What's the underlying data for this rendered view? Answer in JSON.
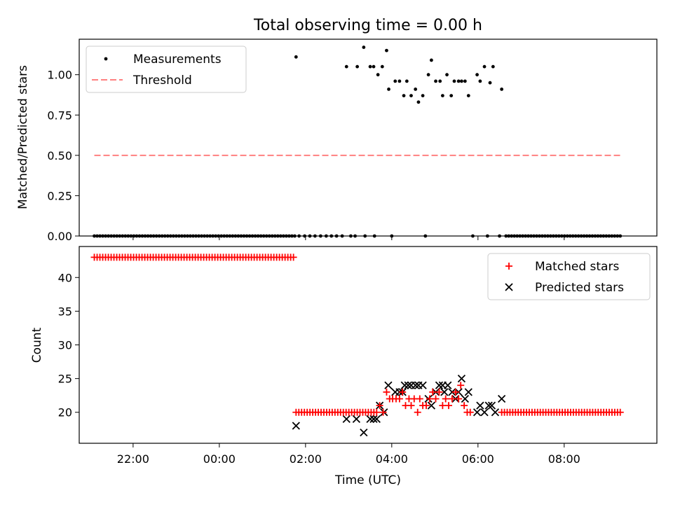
{
  "figure": {
    "title": "Total observing time = 0.00 h"
  },
  "colors": {
    "measurement": "#000000",
    "threshold": "#ff8080",
    "matched": "#ff0000",
    "predicted": "#000000"
  },
  "chart_data": [
    {
      "type": "scatter",
      "panel": "top",
      "x_unit": "hours from 00:00 UTC",
      "xlim": [
        -3.25,
        10.15
      ],
      "ylim": [
        0,
        1.22
      ],
      "xlabel": "",
      "ylabel": "Matched/Predicted stars",
      "x_ticks": [
        {
          "value": -2,
          "label": ""
        },
        {
          "value": 0,
          "label": ""
        },
        {
          "value": 2,
          "label": ""
        },
        {
          "value": 4,
          "label": ""
        },
        {
          "value": 6,
          "label": ""
        },
        {
          "value": 8,
          "label": ""
        }
      ],
      "y_ticks": [
        {
          "value": 0,
          "label": "0.00"
        },
        {
          "value": 0.25,
          "label": "0.25"
        },
        {
          "value": 0.5,
          "label": "0.50"
        },
        {
          "value": 0.75,
          "label": "0.75"
        },
        {
          "value": 1.0,
          "label": "1.00"
        }
      ],
      "legend": {
        "position": "upper-left",
        "entries": [
          {
            "name": "Measurements",
            "kind": "dot"
          },
          {
            "name": "Threshold",
            "kind": "dashed"
          }
        ]
      },
      "threshold": {
        "name": "Threshold",
        "value": 0.5,
        "x_range": [
          -2.9,
          9.35
        ]
      },
      "series": [
        {
          "name": "Measurements",
          "values": {
            "zero_run_1": {
              "x_start": -2.9,
              "x_end": 1.75,
              "count": 72,
              "y": 0
            },
            "points": [
              [
                1.78,
                1.11
              ],
              [
                2.95,
                1.05
              ],
              [
                3.2,
                1.05
              ],
              [
                3.35,
                1.17
              ],
              [
                3.5,
                1.05
              ],
              [
                3.58,
                1.05
              ],
              [
                3.68,
                1.0
              ],
              [
                3.78,
                1.05
              ],
              [
                3.88,
                1.15
              ],
              [
                3.93,
                0.91
              ],
              [
                4.08,
                0.96
              ],
              [
                4.18,
                0.96
              ],
              [
                4.28,
                0.87
              ],
              [
                4.35,
                0.96
              ],
              [
                4.45,
                0.87
              ],
              [
                4.55,
                0.91
              ],
              [
                4.62,
                0.83
              ],
              [
                4.72,
                0.87
              ],
              [
                4.85,
                1.0
              ],
              [
                4.92,
                1.09
              ],
              [
                5.02,
                0.96
              ],
              [
                5.12,
                0.96
              ],
              [
                5.18,
                0.87
              ],
              [
                5.28,
                1.0
              ],
              [
                5.38,
                0.87
              ],
              [
                5.45,
                0.96
              ],
              [
                5.55,
                0.96
              ],
              [
                5.62,
                0.96
              ],
              [
                5.7,
                0.96
              ],
              [
                5.78,
                0.87
              ],
              [
                5.98,
                1.0
              ],
              [
                6.05,
                0.96
              ],
              [
                6.15,
                1.05
              ],
              [
                6.28,
                0.95
              ],
              [
                6.35,
                1.05
              ],
              [
                6.55,
                0.91
              ],
              [
                1.85,
                0
              ],
              [
                1.98,
                0
              ],
              [
                2.1,
                0
              ],
              [
                2.22,
                0
              ],
              [
                2.35,
                0
              ],
              [
                2.48,
                0
              ],
              [
                2.6,
                0
              ],
              [
                2.72,
                0
              ],
              [
                2.85,
                0
              ],
              [
                3.05,
                0
              ],
              [
                3.15,
                0
              ],
              [
                3.38,
                0
              ],
              [
                3.6,
                0
              ],
              [
                4.0,
                0
              ],
              [
                4.78,
                0
              ],
              [
                5.88,
                0
              ],
              [
                6.22,
                0
              ],
              [
                6.5,
                0
              ]
            ],
            "zero_run_2": {
              "x_start": 6.65,
              "x_end": 9.3,
              "count": 42,
              "y": 0
            }
          }
        }
      ]
    },
    {
      "type": "scatter",
      "panel": "bottom",
      "x_unit": "hours from 00:00 UTC",
      "xlim": [
        -3.25,
        10.15
      ],
      "ylim": [
        15.4,
        44.6
      ],
      "xlabel": "Time (UTC)",
      "ylabel": "Count",
      "x_ticks": [
        {
          "value": -2,
          "label": "22:00"
        },
        {
          "value": 0,
          "label": "00:00"
        },
        {
          "value": 2,
          "label": "02:00"
        },
        {
          "value": 4,
          "label": "04:00"
        },
        {
          "value": 6,
          "label": "06:00"
        },
        {
          "value": 8,
          "label": "08:00"
        }
      ],
      "y_ticks": [
        {
          "value": 20,
          "label": "20"
        },
        {
          "value": 25,
          "label": "25"
        },
        {
          "value": 30,
          "label": "30"
        },
        {
          "value": 35,
          "label": "35"
        },
        {
          "value": 40,
          "label": "40"
        }
      ],
      "legend": {
        "position": "upper-right",
        "entries": [
          {
            "name": "Matched stars",
            "kind": "plus"
          },
          {
            "name": "Predicted stars",
            "kind": "cross"
          }
        ]
      },
      "series": [
        {
          "name": "Matched stars",
          "values": {
            "run_1": {
              "x_start": -2.9,
              "x_end": 1.72,
              "count": 72,
              "y": 43
            },
            "run_2": {
              "x_start": 1.78,
              "x_end": 3.65,
              "count": 30,
              "y": 20
            },
            "points": [
              [
                3.72,
                21
              ],
              [
                3.8,
                20
              ],
              [
                3.88,
                23
              ],
              [
                3.95,
                22
              ],
              [
                4.02,
                22
              ],
              [
                4.1,
                22
              ],
              [
                4.18,
                22
              ],
              [
                4.25,
                23
              ],
              [
                4.32,
                21
              ],
              [
                4.4,
                22
              ],
              [
                4.45,
                21
              ],
              [
                4.52,
                22
              ],
              [
                4.6,
                20
              ],
              [
                4.65,
                22
              ],
              [
                4.72,
                21
              ],
              [
                4.8,
                21
              ],
              [
                4.88,
                22
              ],
              [
                4.95,
                23
              ],
              [
                5.02,
                22
              ],
              [
                5.1,
                23
              ],
              [
                5.18,
                21
              ],
              [
                5.25,
                22
              ],
              [
                5.32,
                21
              ],
              [
                5.4,
                22
              ],
              [
                5.48,
                23
              ],
              [
                5.55,
                22
              ],
              [
                5.6,
                24
              ],
              [
                5.68,
                21
              ],
              [
                5.75,
                20
              ],
              [
                5.82,
                20
              ]
            ],
            "run_3": {
              "x_start": 6.55,
              "x_end": 9.3,
              "count": 44,
              "y": 20
            }
          }
        },
        {
          "name": "Predicted stars",
          "values": [
            [
              1.78,
              18
            ],
            [
              2.95,
              19
            ],
            [
              3.18,
              19
            ],
            [
              3.35,
              17
            ],
            [
              3.5,
              19
            ],
            [
              3.58,
              19
            ],
            [
              3.65,
              19
            ],
            [
              3.72,
              21
            ],
            [
              3.82,
              20
            ],
            [
              3.92,
              24
            ],
            [
              4.08,
              23
            ],
            [
              4.18,
              23
            ],
            [
              4.25,
              23
            ],
            [
              4.3,
              24
            ],
            [
              4.38,
              24
            ],
            [
              4.45,
              24
            ],
            [
              4.55,
              24
            ],
            [
              4.62,
              24
            ],
            [
              4.72,
              24
            ],
            [
              4.85,
              22
            ],
            [
              4.92,
              21
            ],
            [
              5.02,
              23
            ],
            [
              5.1,
              24
            ],
            [
              5.18,
              24
            ],
            [
              5.22,
              23
            ],
            [
              5.3,
              24
            ],
            [
              5.4,
              23
            ],
            [
              5.48,
              22
            ],
            [
              5.55,
              23
            ],
            [
              5.62,
              25
            ],
            [
              5.7,
              22
            ],
            [
              5.78,
              23
            ],
            [
              5.98,
              20
            ],
            [
              6.05,
              21
            ],
            [
              6.15,
              20
            ],
            [
              6.25,
              21
            ],
            [
              6.32,
              21
            ],
            [
              6.4,
              20
            ],
            [
              6.55,
              22
            ]
          ]
        }
      ]
    }
  ]
}
